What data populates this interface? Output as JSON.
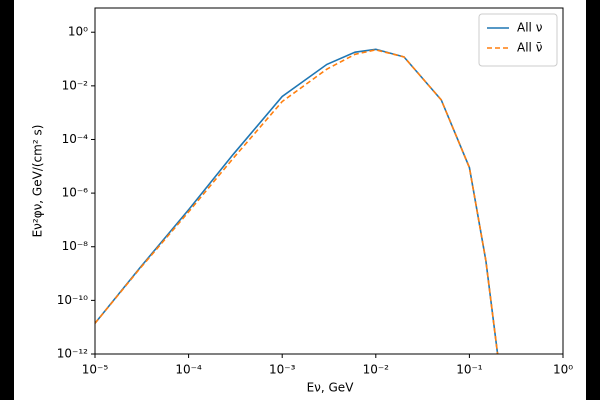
{
  "chart_data": {
    "type": "line",
    "x_label": "Eν, GeV",
    "y_label": "Eν²φν, GeV/(cm² s)",
    "x": [
      1e-05,
      3e-05,
      0.0001,
      0.0003,
      0.001,
      0.003,
      0.006,
      0.01,
      0.02,
      0.05,
      0.1,
      0.15,
      0.2
    ],
    "series": [
      {
        "name": "All ν",
        "color": "#1f77b4",
        "dash": false,
        "values": [
          1.4e-11,
          1.6e-09,
          2.4e-07,
          2.8e-05,
          0.004,
          0.063,
          0.18,
          0.23,
          0.12,
          0.003,
          9e-06,
          3e-09,
          1e-12
        ]
      },
      {
        "name": "All ν̄",
        "color": "#ff7f0e",
        "dash": true,
        "values": [
          1.4e-11,
          1.5e-09,
          2e-07,
          2e-05,
          0.0026,
          0.042,
          0.15,
          0.22,
          0.12,
          0.003,
          9e-06,
          3e-09,
          1e-12
        ]
      }
    ],
    "xlog": true,
    "ylog": true,
    "xlim": [
      1e-05,
      1
    ],
    "ylim": [
      1e-12,
      8
    ],
    "xticks": [
      {
        "value": 1e-05,
        "label": "10⁻⁵"
      },
      {
        "value": 0.0001,
        "label": "10⁻⁴"
      },
      {
        "value": 0.001,
        "label": "10⁻³"
      },
      {
        "value": 0.01,
        "label": "10⁻²"
      },
      {
        "value": 0.1,
        "label": "10⁻¹"
      },
      {
        "value": 1,
        "label": "10⁰"
      }
    ],
    "yticks": [
      {
        "value": 1e-12,
        "label": "10⁻¹²"
      },
      {
        "value": 1e-10,
        "label": "10⁻¹⁰"
      },
      {
        "value": 1e-08,
        "label": "10⁻⁸"
      },
      {
        "value": 1e-06,
        "label": "10⁻⁶"
      },
      {
        "value": 0.0001,
        "label": "10⁻⁴"
      },
      {
        "value": 0.01,
        "label": "10⁻²"
      },
      {
        "value": 1,
        "label": "10⁰"
      }
    ],
    "grid": false,
    "legend": "upper right"
  }
}
